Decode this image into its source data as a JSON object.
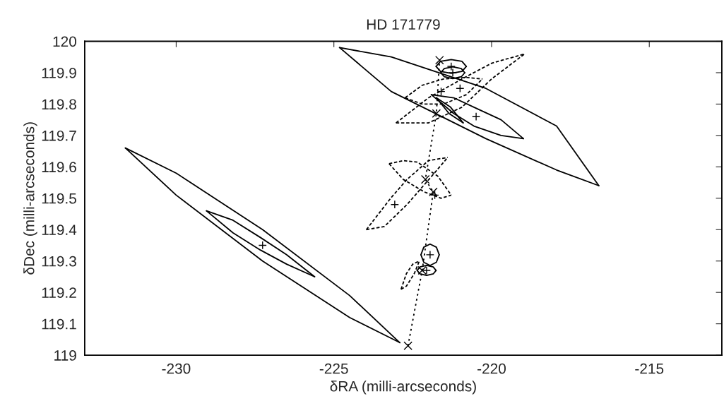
{
  "chart_data": {
    "type": "scatter",
    "title": "HD 171779",
    "xlabel": "δRA (milli-arcseconds)",
    "ylabel": "δDec (milli-arcseconds)",
    "xlim": [
      -232.9,
      -212.7
    ],
    "ylim": [
      119,
      120
    ],
    "xticks": [
      -230,
      -225,
      -220,
      -215
    ],
    "yticks": [
      119,
      119.1,
      119.2,
      119.3,
      119.4,
      119.5,
      119.6,
      119.7,
      119.8,
      119.9,
      120
    ],
    "grid": false,
    "series": [
      {
        "type": "line",
        "line_style": "solid",
        "marker": "none",
        "color": "#000000",
        "x": [
          -231.61,
          -230,
          -227.26,
          -224.5,
          -222.91
        ],
        "values": [
          119.66,
          119.58,
          119.4,
          119.19,
          119.04
        ]
      },
      {
        "type": "line",
        "line_style": "solid",
        "marker": "none",
        "color": "#000000",
        "x": [
          -231.61,
          -230,
          -227.26,
          -224.5,
          -222.91
        ],
        "values": [
          119.66,
          119.51,
          119.3,
          119.12,
          119.04
        ]
      },
      {
        "type": "line",
        "line_style": "solid",
        "marker": "none",
        "color": "#000000",
        "x": [
          -229.04,
          -228.2,
          -227.33,
          -226.5,
          -225.61
        ],
        "values": [
          119.46,
          119.43,
          119.375,
          119.32,
          119.25
        ]
      },
      {
        "type": "line",
        "line_style": "solid",
        "marker": "none",
        "color": "#000000",
        "x": [
          -229.04,
          -228.2,
          -227.33,
          -226.5,
          -225.61
        ],
        "values": [
          119.46,
          119.39,
          119.335,
          119.29,
          119.25
        ]
      },
      {
        "type": "line",
        "line_style": "solid",
        "marker": "none",
        "color": "#000000",
        "x": [
          -224.82,
          -223.18,
          -220.18,
          -217.94,
          -216.6
        ],
        "values": [
          119.98,
          119.95,
          119.85,
          119.73,
          119.54
        ]
      },
      {
        "type": "line",
        "line_style": "solid",
        "marker": "none",
        "color": "#000000",
        "x": [
          -224.82,
          -223.18,
          -220.18,
          -217.94,
          -216.6
        ],
        "values": [
          119.98,
          119.84,
          119.69,
          119.59,
          119.54
        ]
      },
      {
        "type": "line",
        "line_style": "solid",
        "marker": "none",
        "color": "#000000",
        "x": [
          -221.91,
          -221.2,
          -220.56,
          -219.7,
          -218.99
        ],
        "values": [
          119.83,
          119.82,
          119.79,
          119.75,
          119.69
        ]
      },
      {
        "type": "line",
        "line_style": "solid",
        "marker": "none",
        "color": "#000000",
        "x": [
          -221.91,
          -221.2,
          -220.56,
          -219.7,
          -218.99
        ],
        "values": [
          119.83,
          119.77,
          119.73,
          119.7,
          119.69
        ]
      },
      {
        "type": "line",
        "line_style": "dashed",
        "marker": "none",
        "color": "#000000",
        "x": [
          -223.03,
          -222,
          -220.94,
          -220,
          -218.95
        ],
        "values": [
          119.74,
          119.82,
          119.88,
          119.93,
          119.96
        ]
      },
      {
        "type": "line",
        "line_style": "dashed",
        "marker": "none",
        "color": "#000000",
        "x": [
          -223.03,
          -222,
          -220.94,
          -220,
          -218.95
        ],
        "values": [
          119.74,
          119.74,
          119.79,
          119.88,
          119.96
        ]
      },
      {
        "type": "line",
        "line_style": "dashed",
        "marker": "none",
        "color": "#000000",
        "x": [
          -222.74,
          -222.2,
          -221.52,
          -220.8,
          -220.29
        ],
        "values": [
          119.82,
          119.86,
          119.88,
          119.885,
          119.88
        ]
      },
      {
        "type": "line",
        "line_style": "dashed",
        "marker": "none",
        "color": "#000000",
        "x": [
          -222.74,
          -222.2,
          -221.52,
          -220.8,
          -220.29
        ],
        "values": [
          119.82,
          119.8,
          119.8,
          119.83,
          119.88
        ]
      },
      {
        "type": "line",
        "line_style": "dashed",
        "marker": "none",
        "color": "#000000",
        "x": [
          -223.97,
          -223.2,
          -222.68,
          -222,
          -221.39
        ],
        "values": [
          119.4,
          119.5,
          119.56,
          119.62,
          119.63
        ]
      },
      {
        "type": "line",
        "line_style": "dashed",
        "marker": "none",
        "color": "#000000",
        "x": [
          -223.97,
          -223.4,
          -222.68,
          -221.9,
          -221.39
        ],
        "values": [
          119.4,
          119.41,
          119.48,
          119.57,
          119.63
        ]
      },
      {
        "type": "line",
        "line_style": "dashed",
        "marker": "none",
        "color": "#000000",
        "x": [
          -223.25,
          -222.8,
          -222.35,
          -221.7,
          -221.28
        ],
        "values": [
          119.61,
          119.62,
          119.615,
          119.57,
          119.51
        ]
      },
      {
        "type": "line",
        "line_style": "dashed",
        "marker": "none",
        "color": "#000000",
        "x": [
          -223.25,
          -222.8,
          -222.13,
          -221.6,
          -221.28
        ],
        "values": [
          119.61,
          119.56,
          119.52,
          119.5,
          119.51
        ]
      },
      {
        "type": "line",
        "line_style": "solid",
        "marker": "none",
        "color": "#000000",
        "x": [
          -222.24,
          -222.15,
          -221.95,
          -221.75,
          -221.66
        ],
        "values": [
          119.32,
          119.344,
          119.354,
          119.344,
          119.32
        ]
      },
      {
        "type": "line",
        "line_style": "solid",
        "marker": "none",
        "color": "#000000",
        "x": [
          -222.24,
          -222.15,
          -221.95,
          -221.75,
          -221.66
        ],
        "values": [
          119.32,
          119.296,
          119.286,
          119.296,
          119.32
        ]
      },
      {
        "type": "line",
        "line_style": "solid",
        "marker": "none",
        "color": "#000000",
        "x": [
          -222.36,
          -222.27,
          -222.06,
          -221.85,
          -221.76
        ],
        "values": [
          119.27,
          119.281,
          119.286,
          119.281,
          119.27
        ]
      },
      {
        "type": "line",
        "line_style": "solid",
        "marker": "none",
        "color": "#000000",
        "x": [
          -222.36,
          -222.27,
          -222.06,
          -221.85,
          -221.76
        ],
        "values": [
          119.27,
          119.259,
          119.254,
          119.259,
          119.27
        ]
      },
      {
        "type": "line",
        "line_style": "dashed",
        "marker": "none",
        "color": "#000000",
        "x": [
          -222.87,
          -222.7,
          -222.5,
          -222.29
        ],
        "values": [
          119.21,
          119.26,
          119.29,
          119.3
        ]
      },
      {
        "type": "line",
        "line_style": "dashed",
        "marker": "none",
        "color": "#000000",
        "x": [
          -222.87,
          -222.7,
          -222.45,
          -222.29
        ],
        "values": [
          119.21,
          119.22,
          119.26,
          119.3
        ]
      },
      {
        "type": "line",
        "line_style": "solid",
        "marker": "none",
        "color": "#000000",
        "x": [
          -221.76,
          -221.62,
          -221.28,
          -220.94,
          -220.8
        ],
        "values": [
          119.92,
          119.936,
          119.942,
          119.936,
          119.92
        ]
      },
      {
        "type": "line",
        "line_style": "solid",
        "marker": "none",
        "color": "#000000",
        "x": [
          -221.76,
          -221.62,
          -221.28,
          -220.94,
          -220.8
        ],
        "values": [
          119.92,
          119.904,
          119.898,
          119.904,
          119.92
        ]
      },
      {
        "type": "line",
        "line_style": "solid",
        "marker": "none",
        "color": "#000000",
        "x": [
          -221.61,
          -221.5,
          -221.23,
          -220.96,
          -220.85
        ],
        "values": [
          119.9,
          119.913,
          119.919,
          119.913,
          119.9
        ]
      },
      {
        "type": "line",
        "line_style": "solid",
        "marker": "none",
        "color": "#000000",
        "x": [
          -221.61,
          -221.5,
          -221.23,
          -220.96,
          -220.85
        ],
        "values": [
          119.9,
          119.887,
          119.881,
          119.887,
          119.9
        ]
      },
      {
        "type": "line",
        "line_style": "solid",
        "marker": "none",
        "color": "#000000",
        "x": [
          -221.75,
          -221.3,
          -220.9
        ],
        "values": [
          119.82,
          119.79,
          119.74
        ]
      },
      {
        "type": "line",
        "line_style": "solid",
        "marker": "none",
        "color": "#000000",
        "x": [
          -221.75,
          -221.35,
          -220.9
        ],
        "values": [
          119.82,
          119.77,
          119.74
        ]
      },
      {
        "type": "line",
        "line_style": "dotted",
        "marker": "cross",
        "color": "#000000",
        "x": [
          -222.65,
          -222.2,
          -221.85,
          -222.1,
          -221.75,
          -221.65
        ],
        "values": [
          119.03,
          119.27,
          119.52,
          119.56,
          119.77,
          119.94
        ]
      },
      {
        "type": "scatter",
        "marker": "plus",
        "color": "#000000",
        "x": [
          -227.26,
          -220.49,
          -221.95,
          -222.06,
          -221.8,
          -221.6,
          -221.0,
          -221.28,
          -221.23,
          -223.07
        ],
        "values": [
          119.35,
          119.76,
          119.32,
          119.27,
          119.51,
          119.84,
          119.85,
          119.92,
          119.9,
          119.48
        ]
      }
    ]
  }
}
